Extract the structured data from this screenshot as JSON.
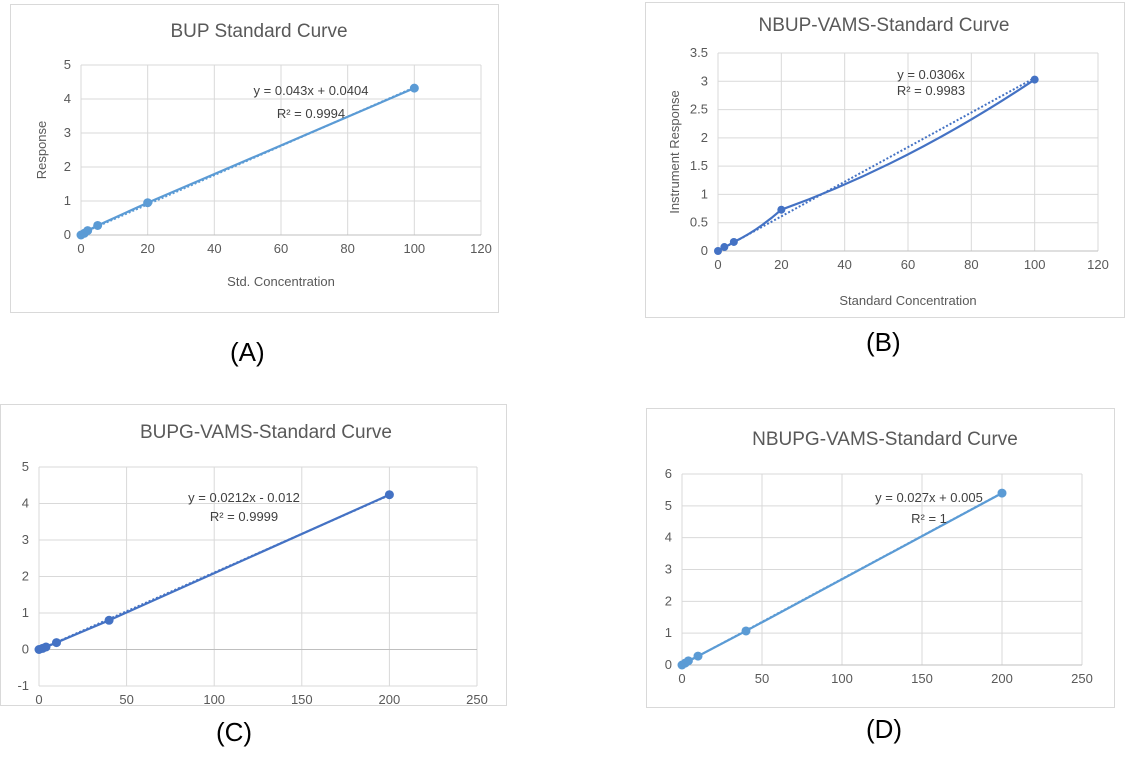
{
  "colors": {
    "series_A": "#5b9bd5",
    "series_B": "#4472c4",
    "series_C": "#4472c4",
    "series_D": "#5b9bd5"
  },
  "chart_data": [
    {
      "type": "scatter",
      "title": "BUP Standard Curve",
      "caption": "(A)",
      "xlabel": "Std. Concentration",
      "ylabel": "Response",
      "xlim": [
        0,
        120
      ],
      "ylim": [
        0,
        5
      ],
      "xticks": [
        "0",
        "20",
        "40",
        "60",
        "80",
        "100",
        "120"
      ],
      "yticks": [
        "0",
        "1",
        "2",
        "3",
        "4",
        "5"
      ],
      "series": [
        {
          "x": [
            0,
            1,
            2,
            5,
            20,
            100
          ],
          "y": [
            0,
            0.05,
            0.13,
            0.28,
            0.95,
            4.32
          ]
        }
      ],
      "trendline": {
        "slope": 0.043,
        "intercept": 0.0404,
        "style": "dotted"
      },
      "equation": "y = 0.043x + 0.0404",
      "r2": "R² = 0.9994",
      "grid": true
    },
    {
      "type": "scatter",
      "title": "NBUP-VAMS-Standard Curve",
      "caption": "(B)",
      "xlabel": "Standard Concentration",
      "ylabel": "Instrument Response",
      "xlim": [
        0,
        120
      ],
      "ylim": [
        0,
        3.5
      ],
      "xticks": [
        "0",
        "20",
        "40",
        "60",
        "80",
        "100",
        "120"
      ],
      "yticks": [
        "0",
        "0.5",
        "1",
        "1.5",
        "2",
        "2.5",
        "3",
        "3.5"
      ],
      "series": [
        {
          "x": [
            0,
            2,
            5,
            20,
            100
          ],
          "y": [
            0,
            0.07,
            0.16,
            0.73,
            3.03
          ]
        }
      ],
      "trendline": {
        "slope": 0.0306,
        "intercept": 0,
        "style": "dotted"
      },
      "equation": "y = 0.0306x",
      "r2": "R² = 0.9983",
      "grid": true
    },
    {
      "type": "scatter",
      "title": "BUPG-VAMS-Standard Curve",
      "caption": "(C)",
      "xlabel": "",
      "ylabel": "",
      "xlim": [
        0,
        250
      ],
      "ylim": [
        -1,
        5
      ],
      "xticks": [
        "0",
        "50",
        "100",
        "150",
        "200",
        "250"
      ],
      "yticks": [
        "-1",
        "0",
        "1",
        "2",
        "3",
        "4",
        "5"
      ],
      "series": [
        {
          "x": [
            0,
            2,
            4,
            10,
            40,
            200
          ],
          "y": [
            0,
            0.03,
            0.07,
            0.19,
            0.8,
            4.24
          ]
        }
      ],
      "trendline": {
        "slope": 0.0212,
        "intercept": -0.012,
        "style": "dotted"
      },
      "equation": "y = 0.0212x - 0.012",
      "r2": "R² = 0.9999",
      "grid": true
    },
    {
      "type": "scatter",
      "title": "NBUPG-VAMS-Standard Curve",
      "caption": "(D)",
      "xlabel": "",
      "ylabel": "",
      "xlim": [
        0,
        250
      ],
      "ylim": [
        0,
        6
      ],
      "xticks": [
        "0",
        "50",
        "100",
        "150",
        "200",
        "250"
      ],
      "yticks": [
        "0",
        "1",
        "2",
        "3",
        "4",
        "5",
        "6"
      ],
      "series": [
        {
          "x": [
            0,
            2,
            4,
            10,
            40,
            200
          ],
          "y": [
            0,
            0.06,
            0.13,
            0.28,
            1.07,
            5.4
          ]
        }
      ],
      "trendline": {
        "slope": 0.027,
        "intercept": 0.005,
        "style": "dotted"
      },
      "equation": "y = 0.027x + 0.005",
      "r2": "R² = 1",
      "grid": true
    }
  ]
}
